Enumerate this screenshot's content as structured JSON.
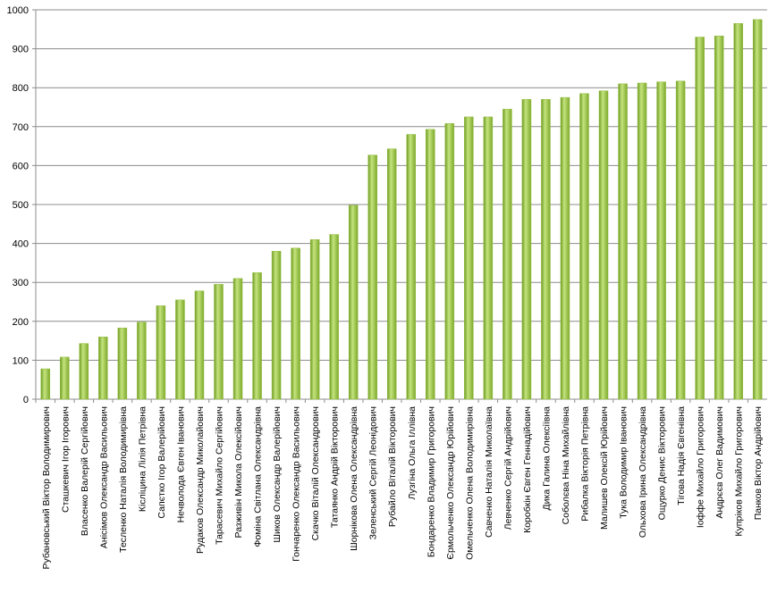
{
  "chart_data": {
    "type": "bar",
    "categories": [
      "Рубановський Віктор Володимирович",
      "Сташкевич Ігор Ігорович",
      "Власенко Валерій Сергійович",
      "Анісімов Олександр Васильович",
      "Тесленко Наталія Володимирівна",
      "Кісліцина Лілія Петрівна",
      "Сапєтко Ігор Валерійович",
      "Нечволода Євген Іванович",
      "Рудаков Олександр Миколайович",
      "Тарасевич Михайло Сергійович",
      "Разживін Микола Олексійович",
      "Фоміна Світлана Олександрівна",
      "Шиков Олександр Валерійович",
      "Гончаренко Олександр Васильович",
      "Скачко Віталій Олександрович",
      "Татаянко Андрій Вікторович",
      "Шорнікова Олена Олександрівна",
      "Зеленський Сергій Леонідович",
      "Рубайло Віталій Вікторович",
      "Лузгіна Ольга Іллівна",
      "Бондаренко Владимир Григорович",
      "Єрмольченко Олександр Юрійович",
      "Омельченко Олена Володимирівна",
      "Савченко Наталія Миколаївна",
      "Левченко Сергій Андрійович",
      "Коробкін Євген Геннадійович",
      "Дика Галина Олексіївна",
      "Соболєва Ніна Михайлівна",
      "Рибалка Вікторія Петрівна",
      "Малишев Олексій Юрійович",
      "Тука Володимир Іванович",
      "Ольхова Ірина Олександрівна",
      "Ощурко Денис Вікторович",
      "Тігова Надія Євгенівна",
      "Іоффе Михайло Григорович",
      "Андрєєв Олег Вадимович",
      "Купріков Михайло Григорович",
      "Панков Віктор Андрійович"
    ],
    "values": [
      78,
      108,
      143,
      160,
      183,
      198,
      240,
      255,
      278,
      295,
      310,
      325,
      380,
      388,
      410,
      423,
      498,
      627,
      643,
      680,
      693,
      708,
      725,
      725,
      745,
      770,
      770,
      775,
      785,
      792,
      810,
      812,
      815,
      817,
      930,
      933,
      965,
      975
    ],
    "color": "#8fbc3a",
    "ylim": [
      0,
      1000
    ],
    "yticks": [
      0,
      100,
      200,
      300,
      400,
      500,
      600,
      700,
      800,
      900,
      1000
    ],
    "grid": true
  }
}
